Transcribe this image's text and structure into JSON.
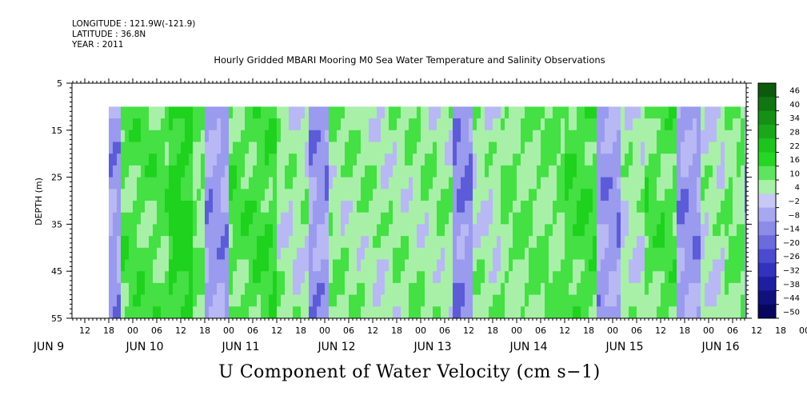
{
  "header": {
    "longitude": "LONGITUDE : 121.9W(-121.9)",
    "latitude": "LATITUDE : 36.8N",
    "year": "YEAR : 2011"
  },
  "chart_data": {
    "type": "heatmap",
    "title": "Hourly Gridded MBARI Mooring M0 Sea Water Temperature and Salinity Observations",
    "xlabel": "U Component of Water Velocity (cm s−1)",
    "ylabel": "DEPTH (m)",
    "ylim": [
      55,
      5
    ],
    "y_ticks": [
      5,
      15,
      25,
      35,
      45,
      55
    ],
    "x_hour_ticks": [
      "12",
      "18",
      "00",
      "06",
      "12",
      "18",
      "00",
      "06",
      "12",
      "18",
      "00",
      "06",
      "12",
      "18",
      "00",
      "06",
      "12",
      "18",
      "00",
      "06",
      "12",
      "18",
      "00",
      "06",
      "12",
      "18",
      "00",
      "06",
      "12",
      "18",
      "00",
      "06",
      "12",
      "18",
      "00",
      "06"
    ],
    "x_day_labels": [
      "JUN  9",
      "JUN 10",
      "JUN 11",
      "JUN 12",
      "JUN 13",
      "JUN 14",
      "JUN 15",
      "JUN 16"
    ],
    "colorbar_levels": [
      "46",
      "40",
      "34",
      "28",
      "22",
      "16",
      "10",
      "4",
      "−2",
      "−8",
      "−14",
      "−20",
      "−26",
      "−32",
      "−38",
      "−44",
      "−50"
    ],
    "data_depth_range": [
      10,
      55
    ],
    "bands": [
      {
        "start_hour": 18,
        "end_hour": 21,
        "u": -6
      },
      {
        "start_hour": 21,
        "end_hour": 33,
        "u": 10
      },
      {
        "start_hour": 33,
        "end_hour": 39,
        "u": 16
      },
      {
        "start_hour": 39,
        "end_hour": 42,
        "u": 8
      },
      {
        "start_hour": 42,
        "end_hour": 48,
        "u": -6
      },
      {
        "start_hour": 48,
        "end_hour": 54,
        "u": 10
      },
      {
        "start_hour": 54,
        "end_hour": 60,
        "u": 12
      },
      {
        "start_hour": 60,
        "end_hour": 68,
        "u": 4
      },
      {
        "start_hour": 68,
        "end_hour": 73,
        "u": -6
      },
      {
        "start_hour": 73,
        "end_hour": 85,
        "u": 6
      },
      {
        "start_hour": 85,
        "end_hour": 88,
        "u": 4
      },
      {
        "start_hour": 88,
        "end_hour": 96,
        "u": 6
      },
      {
        "start_hour": 96,
        "end_hour": 104,
        "u": 6
      },
      {
        "start_hour": 104,
        "end_hour": 109,
        "u": -8
      },
      {
        "start_hour": 109,
        "end_hour": 116,
        "u": 4
      },
      {
        "start_hour": 116,
        "end_hour": 120,
        "u": 8
      },
      {
        "start_hour": 120,
        "end_hour": 132,
        "u": 8
      },
      {
        "start_hour": 132,
        "end_hour": 140,
        "u": 12
      },
      {
        "start_hour": 140,
        "end_hour": 146,
        "u": -6
      },
      {
        "start_hour": 146,
        "end_hour": 152,
        "u": 4
      },
      {
        "start_hour": 152,
        "end_hour": 160,
        "u": 10
      },
      {
        "start_hour": 160,
        "end_hour": 166,
        "u": -6
      },
      {
        "start_hour": 166,
        "end_hour": 172,
        "u": 4
      },
      {
        "start_hour": 172,
        "end_hour": 177,
        "u": 8
      },
      {
        "start_hour": 177,
        "end_hour": 180,
        "u": -8
      }
    ],
    "colors": {
      "positive_light": "#a8f0a8",
      "positive_mid": "#44e044",
      "positive_strong": "#1ed21e",
      "negative_light": "#b8b8f4",
      "negative_mid": "#9a9aee",
      "negative_strong": "#5c5cd8"
    }
  }
}
